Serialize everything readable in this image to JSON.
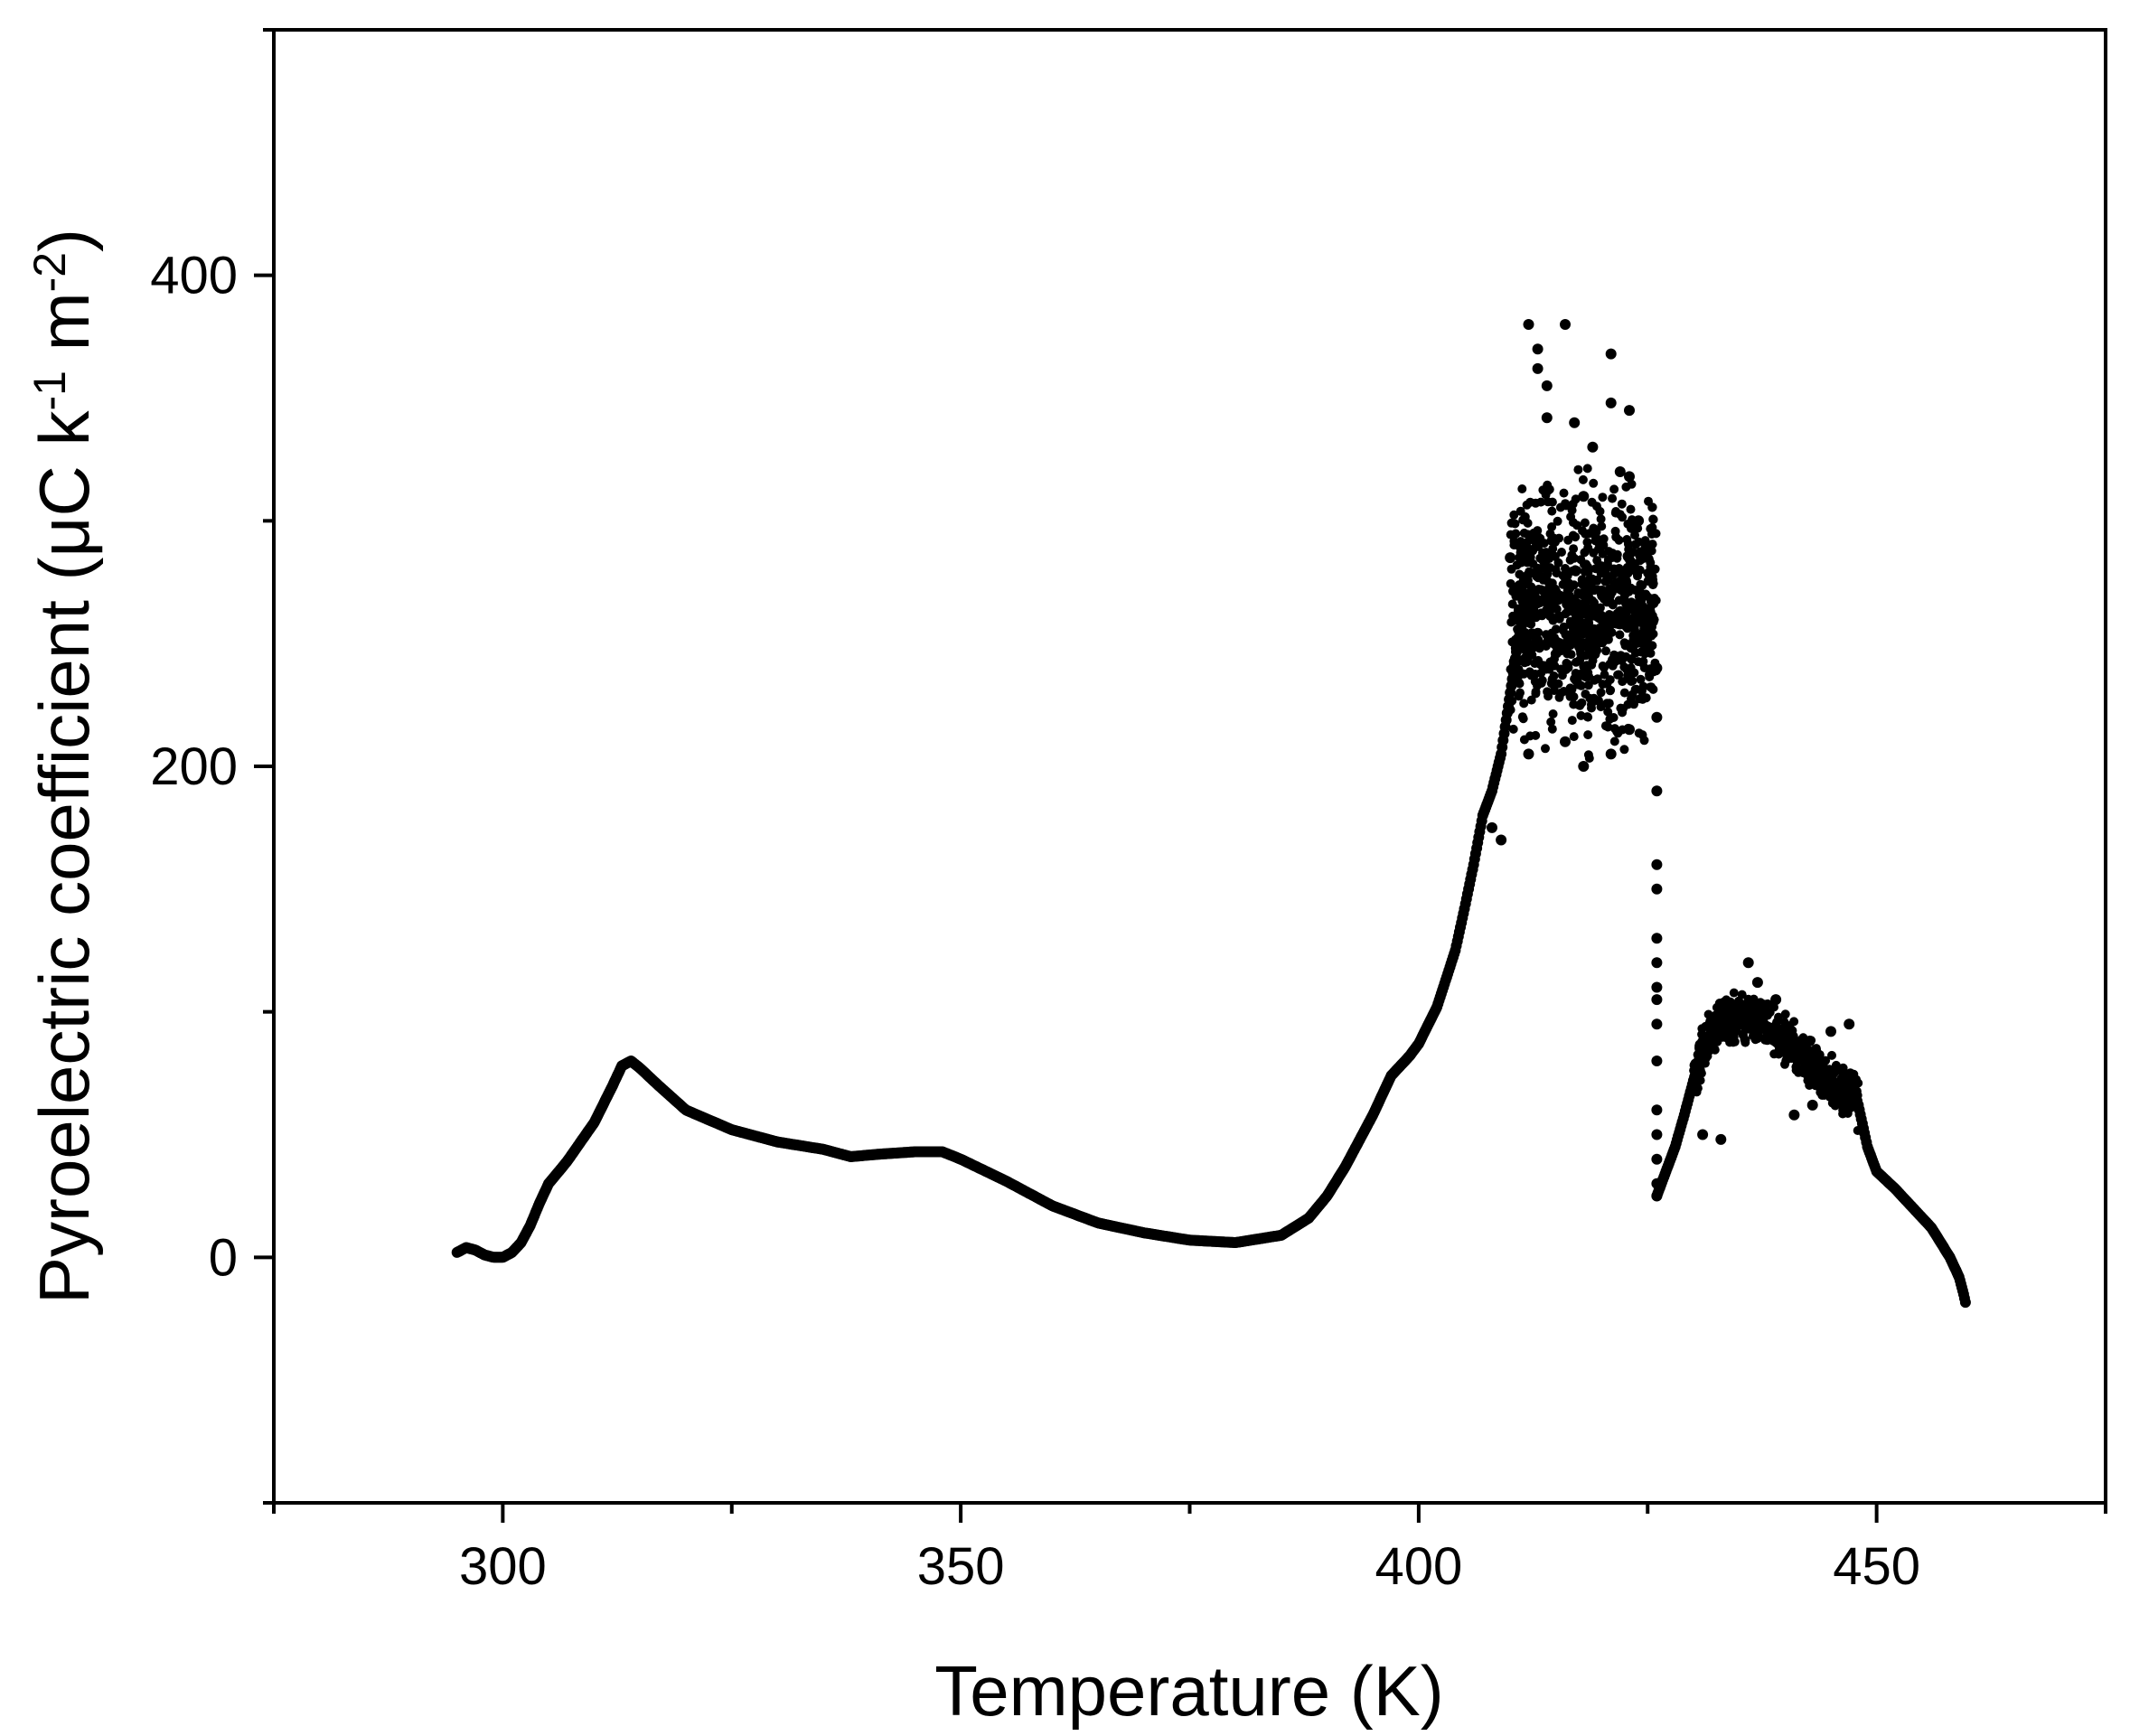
{
  "chart_data": {
    "type": "scatter",
    "xlabel": "Temperature (K)",
    "ylabel": {
      "prefix": "Pyroelectric coefficient (μC k",
      "exp1": "-1",
      "mid": " m",
      "exp2": "-2",
      "suffix": ")"
    },
    "xlim": [
      275,
      475
    ],
    "ylim": [
      -100,
      500
    ],
    "x_ticks": [
      300,
      350,
      400,
      450
    ],
    "y_ticks": [
      0,
      200,
      400
    ],
    "grid": false,
    "legend": "none",
    "marker_color": "#000000",
    "series": [
      {
        "curve": [
          [
            295,
            2
          ],
          [
            296,
            4
          ],
          [
            297,
            3
          ],
          [
            298,
            1
          ],
          [
            299,
            0
          ],
          [
            300,
            0
          ],
          [
            301,
            2
          ],
          [
            302,
            6
          ],
          [
            303,
            13
          ],
          [
            304,
            22
          ],
          [
            305,
            30
          ],
          [
            307,
            39
          ],
          [
            310,
            55
          ],
          [
            312,
            70
          ],
          [
            313,
            78
          ],
          [
            314,
            80
          ],
          [
            315,
            77
          ],
          [
            317,
            70
          ],
          [
            320,
            60
          ],
          [
            325,
            52
          ],
          [
            330,
            47
          ],
          [
            335,
            44
          ],
          [
            338,
            41
          ],
          [
            341,
            42
          ],
          [
            345,
            43
          ],
          [
            348,
            43
          ],
          [
            350,
            40
          ],
          [
            355,
            31
          ],
          [
            360,
            21
          ],
          [
            365,
            14
          ],
          [
            370,
            10
          ],
          [
            375,
            7
          ],
          [
            380,
            6
          ],
          [
            385,
            9
          ],
          [
            388,
            16
          ],
          [
            390,
            25
          ],
          [
            392,
            37
          ],
          [
            395,
            58
          ],
          [
            397,
            74
          ],
          [
            399,
            82
          ],
          [
            400,
            87
          ],
          [
            402,
            102
          ],
          [
            404,
            125
          ],
          [
            405,
            142
          ],
          [
            406,
            160
          ],
          [
            407,
            180
          ],
          [
            408,
            190
          ],
          [
            409,
            205
          ],
          [
            410,
            230
          ],
          [
            411,
            255
          ],
          [
            412,
            265
          ],
          [
            415,
            270
          ],
          [
            418,
            265
          ],
          [
            420,
            260
          ],
          [
            422,
            258
          ],
          [
            425,
            262
          ]
        ],
        "scatter_band": {
          "x_range": [
            410,
            426
          ],
          "center": 262,
          "spread": 35
        },
        "outliers": [
          [
            412,
            380
          ],
          [
            413,
            370
          ],
          [
            413,
            362
          ],
          [
            414,
            342
          ],
          [
            414,
            355
          ],
          [
            416,
            380
          ],
          [
            417,
            340
          ],
          [
            421,
            368
          ],
          [
            421,
            348
          ],
          [
            423,
            345
          ],
          [
            419,
            330
          ],
          [
            422,
            320
          ],
          [
            423,
            318
          ],
          [
            418,
            310
          ],
          [
            424,
            300
          ],
          [
            412,
            205
          ],
          [
            416,
            210
          ],
          [
            418,
            200
          ],
          [
            421,
            205
          ],
          [
            423,
            215
          ],
          [
            409,
            170
          ],
          [
            408,
            175
          ],
          [
            410,
            285
          ],
          [
            411,
            290
          ]
        ],
        "drop": [
          [
            426,
            240
          ],
          [
            426,
            220
          ],
          [
            426,
            190
          ],
          [
            426,
            160
          ],
          [
            426,
            150
          ],
          [
            426,
            130
          ],
          [
            426,
            120
          ],
          [
            426,
            110
          ],
          [
            426,
            105
          ],
          [
            426,
            95
          ],
          [
            426,
            80
          ],
          [
            426,
            60
          ],
          [
            426,
            50
          ],
          [
            426,
            40
          ],
          [
            426,
            30
          ],
          [
            426,
            25
          ]
        ],
        "curve2": [
          [
            426,
            25
          ],
          [
            427,
            35
          ],
          [
            428,
            45
          ],
          [
            429,
            58
          ],
          [
            430,
            72
          ],
          [
            431,
            85
          ],
          [
            432,
            92
          ],
          [
            433,
            96
          ],
          [
            435,
            98
          ],
          [
            437,
            96
          ],
          [
            439,
            92
          ],
          [
            441,
            85
          ],
          [
            443,
            78
          ],
          [
            445,
            72
          ],
          [
            446,
            70
          ],
          [
            447,
            68
          ],
          [
            448,
            62
          ],
          [
            449,
            45
          ],
          [
            450,
            35
          ],
          [
            452,
            28
          ],
          [
            454,
            20
          ],
          [
            456,
            12
          ],
          [
            458,
            0
          ],
          [
            459,
            -8
          ],
          [
            459.5,
            -15
          ],
          [
            459.8,
            -20
          ]
        ],
        "band2": {
          "x_range": [
            430,
            448
          ],
          "spread": 12
        },
        "outliers2": [
          [
            436,
            120
          ],
          [
            437,
            112
          ],
          [
            439,
            105
          ],
          [
            445,
            92
          ],
          [
            447,
            95
          ],
          [
            431,
            50
          ],
          [
            433,
            48
          ],
          [
            441,
            58
          ],
          [
            443,
            62
          ]
        ]
      }
    ]
  }
}
